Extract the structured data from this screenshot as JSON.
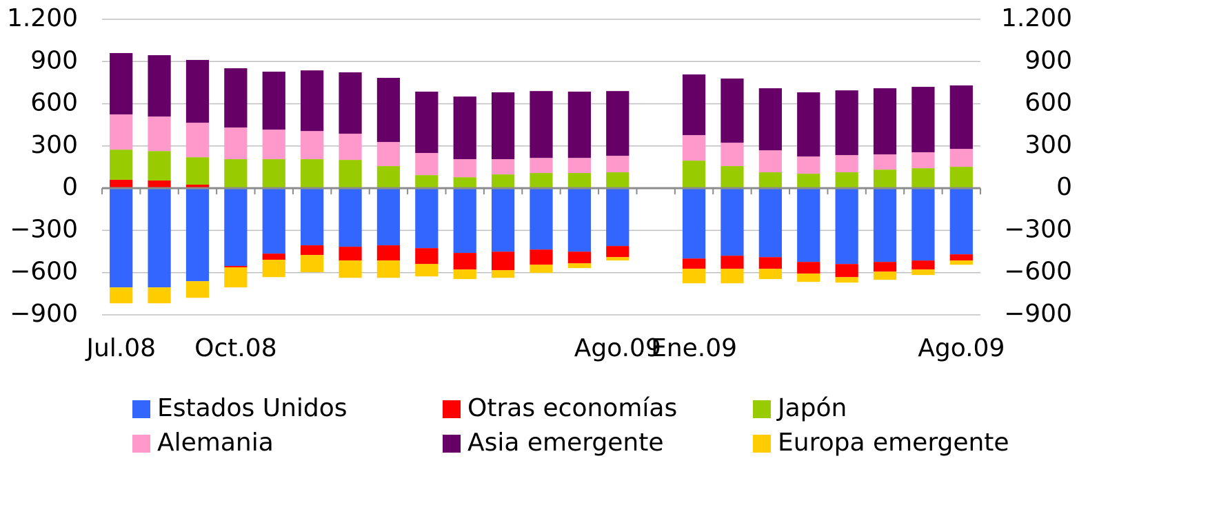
{
  "chart_data": {
    "type": "bar",
    "stacked": true,
    "categories": [
      "Jul.08",
      null,
      null,
      "Oct.08",
      null,
      null,
      null,
      null,
      null,
      null,
      null,
      null,
      null,
      "Ago.09",
      null,
      "Ene.09",
      null,
      null,
      null,
      null,
      null,
      null,
      "Ago.09"
    ],
    "series": [
      {
        "name": "Estados Unidos",
        "color": "#3366ff",
        "values": [
          -705,
          -705,
          -661,
          -553,
          -465,
          -406,
          -416,
          -406,
          -426,
          -460,
          -451,
          -436,
          -451,
          -411,
          null,
          -500,
          -480,
          -490,
          -524,
          -539,
          -524,
          -514,
          -470
        ]
      },
      {
        "name": "Otras economías",
        "color": "#ff0000",
        "values": [
          60,
          55,
          25,
          -10,
          -44,
          -69,
          -98,
          -108,
          -113,
          -118,
          -132,
          -108,
          -83,
          -79,
          null,
          -73,
          -93,
          -83,
          -83,
          -93,
          -69,
          -64,
          -44
        ]
      },
      {
        "name": "Japón",
        "color": "#99cc00",
        "values": [
          214,
          209,
          195,
          206,
          206,
          206,
          201,
          157,
          93,
          78,
          98,
          108,
          108,
          113,
          null,
          196,
          157,
          113,
          103,
          113,
          132,
          142,
          152
        ]
      },
      {
        "name": "Alemania",
        "color": "#ff99cc",
        "values": [
          250,
          245,
          245,
          225,
          210,
          200,
          186,
          171,
          157,
          128,
          108,
          107,
          107,
          117,
          null,
          181,
          166,
          156,
          122,
          122,
          108,
          113,
          127
        ]
      },
      {
        "name": "Asia emergente",
        "color": "#660066",
        "values": [
          436,
          436,
          446,
          421,
          412,
          431,
          436,
          456,
          436,
          445,
          475,
          475,
          471,
          460,
          null,
          431,
          456,
          441,
          456,
          460,
          470,
          465,
          451
        ]
      },
      {
        "name": "Europa emergente",
        "color": "#ffcc00",
        "values": [
          -113,
          -113,
          -118,
          -142,
          -123,
          -122,
          -123,
          -123,
          -88,
          -68,
          -54,
          -58,
          -34,
          -24,
          null,
          -103,
          -103,
          -73,
          -59,
          -39,
          -58,
          -39,
          -30
        ]
      }
    ],
    "ylim": [
      -900,
      1200
    ],
    "yticks": [
      {
        "value": -900,
        "label": "−900"
      },
      {
        "value": -600,
        "label": "−600"
      },
      {
        "value": -300,
        "label": "−300"
      },
      0,
      300,
      600,
      900,
      {
        "value": 1200,
        "label": "1.200"
      }
    ],
    "y2lim": [
      -900,
      1200
    ],
    "y2ticks": [
      {
        "value": -900,
        "label": "−900"
      },
      {
        "value": -600,
        "label": "−600"
      },
      {
        "value": -300,
        "label": "−300"
      },
      0,
      300,
      600,
      900,
      {
        "value": 1200,
        "label": "1.200"
      }
    ],
    "grid": true
  }
}
